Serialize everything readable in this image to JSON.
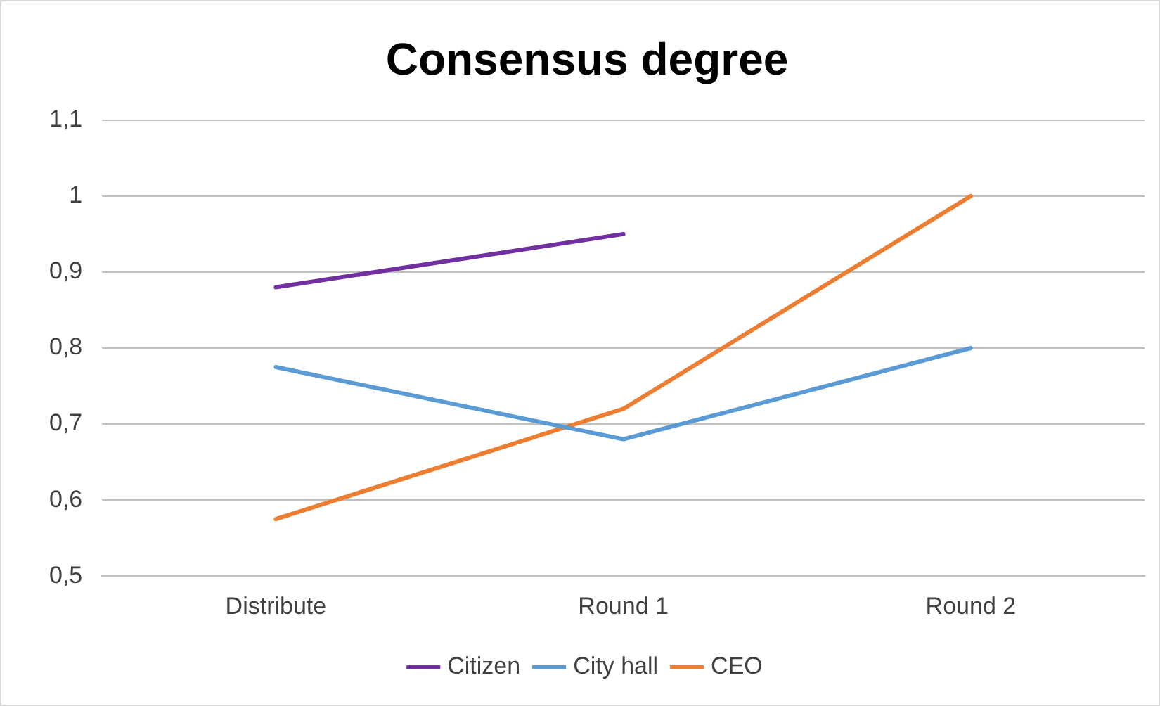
{
  "chart_data": {
    "type": "line",
    "title": "Consensus degree",
    "categories": [
      "Distribute",
      "Round 1",
      "Round 2"
    ],
    "series": [
      {
        "name": "Citizen",
        "color": "#7030a0",
        "values": [
          0.88,
          0.95,
          null
        ]
      },
      {
        "name": "City hall",
        "color": "#5b9bd5",
        "values": [
          0.775,
          0.68,
          0.8
        ]
      },
      {
        "name": "CEO",
        "color": "#ed7d31",
        "values": [
          0.575,
          0.72,
          1.0
        ]
      }
    ],
    "ylim": [
      0.5,
      1.1
    ],
    "yticks": [
      {
        "value": 0.5,
        "label": "0,5"
      },
      {
        "value": 0.6,
        "label": "0,6"
      },
      {
        "value": 0.7,
        "label": "0,7"
      },
      {
        "value": 0.8,
        "label": "0,8"
      },
      {
        "value": 0.9,
        "label": "0,9"
      },
      {
        "value": 1,
        "label": "1"
      },
      {
        "value": 1.1,
        "label": "1,1"
      }
    ],
    "grid": "y",
    "legend": "bottom",
    "marker": "none",
    "line_style": "solid"
  }
}
